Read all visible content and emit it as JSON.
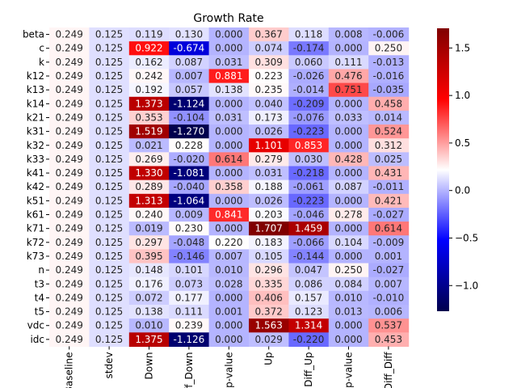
{
  "chart_data": {
    "type": "heatmap",
    "title": "Growth Rate",
    "xlabel": "",
    "ylabel": "",
    "columns": [
      "Baseline",
      "stdev",
      "Down",
      "Diff_Down",
      "p-value",
      "Up",
      "Diff_Up",
      "p-value",
      "Diff_Diff"
    ],
    "rows": [
      "beta",
      "c",
      "k",
      "k12",
      "k13",
      "k14",
      "k21",
      "k31",
      "k32",
      "k33",
      "k41",
      "k42",
      "k51",
      "k61",
      "k71",
      "k72",
      "k73",
      "n",
      "t3",
      "t4",
      "t5",
      "vdc",
      "idc"
    ],
    "values": [
      [
        0.249,
        0.125,
        0.119,
        0.13,
        0.0,
        0.367,
        0.118,
        0.008,
        -0.006
      ],
      [
        0.249,
        0.125,
        0.922,
        -0.674,
        0.0,
        0.074,
        -0.174,
        0.0,
        0.25
      ],
      [
        0.249,
        0.125,
        0.162,
        0.087,
        0.031,
        0.309,
        0.06,
        0.111,
        -0.013
      ],
      [
        0.249,
        0.125,
        0.242,
        0.007,
        0.881,
        0.223,
        -0.026,
        0.476,
        -0.016
      ],
      [
        0.249,
        0.125,
        0.192,
        0.057,
        0.138,
        0.235,
        -0.014,
        0.751,
        -0.035
      ],
      [
        0.249,
        0.125,
        1.373,
        -1.124,
        0.0,
        0.04,
        -0.209,
        0.0,
        0.458
      ],
      [
        0.249,
        0.125,
        0.353,
        -0.104,
        0.031,
        0.173,
        -0.076,
        0.033,
        0.014
      ],
      [
        0.249,
        0.125,
        1.519,
        -1.27,
        0.0,
        0.026,
        -0.223,
        0.0,
        0.524
      ],
      [
        0.249,
        0.125,
        0.021,
        0.228,
        0.0,
        1.101,
        0.853,
        0.0,
        0.312
      ],
      [
        0.249,
        0.125,
        0.269,
        -0.02,
        0.614,
        0.279,
        0.03,
        0.428,
        0.025
      ],
      [
        0.249,
        0.125,
        1.33,
        -1.081,
        0.0,
        0.031,
        -0.218,
        0.0,
        0.431
      ],
      [
        0.249,
        0.125,
        0.289,
        -0.04,
        0.358,
        0.188,
        -0.061,
        0.087,
        -0.011
      ],
      [
        0.249,
        0.125,
        1.313,
        -1.064,
        0.0,
        0.026,
        -0.223,
        0.0,
        0.421
      ],
      [
        0.249,
        0.125,
        0.24,
        0.009,
        0.841,
        0.203,
        -0.046,
        0.278,
        -0.027
      ],
      [
        0.249,
        0.125,
        0.019,
        0.23,
        0.0,
        1.707,
        1.459,
        0.0,
        0.614
      ],
      [
        0.249,
        0.125,
        0.297,
        -0.048,
        0.22,
        0.183,
        -0.066,
        0.104,
        -0.009
      ],
      [
        0.249,
        0.125,
        0.395,
        -0.146,
        0.007,
        0.105,
        -0.144,
        0.0,
        0.001
      ],
      [
        0.249,
        0.125,
        0.148,
        0.101,
        0.01,
        0.296,
        0.047,
        0.25,
        -0.027
      ],
      [
        0.249,
        0.125,
        0.176,
        0.073,
        0.028,
        0.335,
        0.086,
        0.084,
        0.007
      ],
      [
        0.249,
        0.125,
        0.072,
        0.177,
        0.0,
        0.406,
        0.157,
        0.01,
        -0.01
      ],
      [
        0.249,
        0.125,
        0.138,
        0.111,
        0.001,
        0.372,
        0.123,
        0.013,
        0.006
      ],
      [
        0.249,
        0.125,
        0.01,
        0.239,
        0.0,
        1.563,
        1.314,
        0.0,
        0.537
      ],
      [
        0.249,
        0.125,
        1.375,
        -1.126,
        0.0,
        0.029,
        -0.22,
        0.0,
        0.453
      ]
    ],
    "vmin": -1.27,
    "vmax": 1.707,
    "colormap": "seismic",
    "colorbar": {
      "ticks": [
        -1.0,
        -0.5,
        0.0,
        0.5,
        1.0,
        1.5
      ],
      "tick_labels": [
        "−1.0",
        "−0.5",
        "0.0",
        "0.5",
        "1.0",
        "1.5"
      ]
    },
    "value_format": "3 decimals",
    "grid": false
  }
}
